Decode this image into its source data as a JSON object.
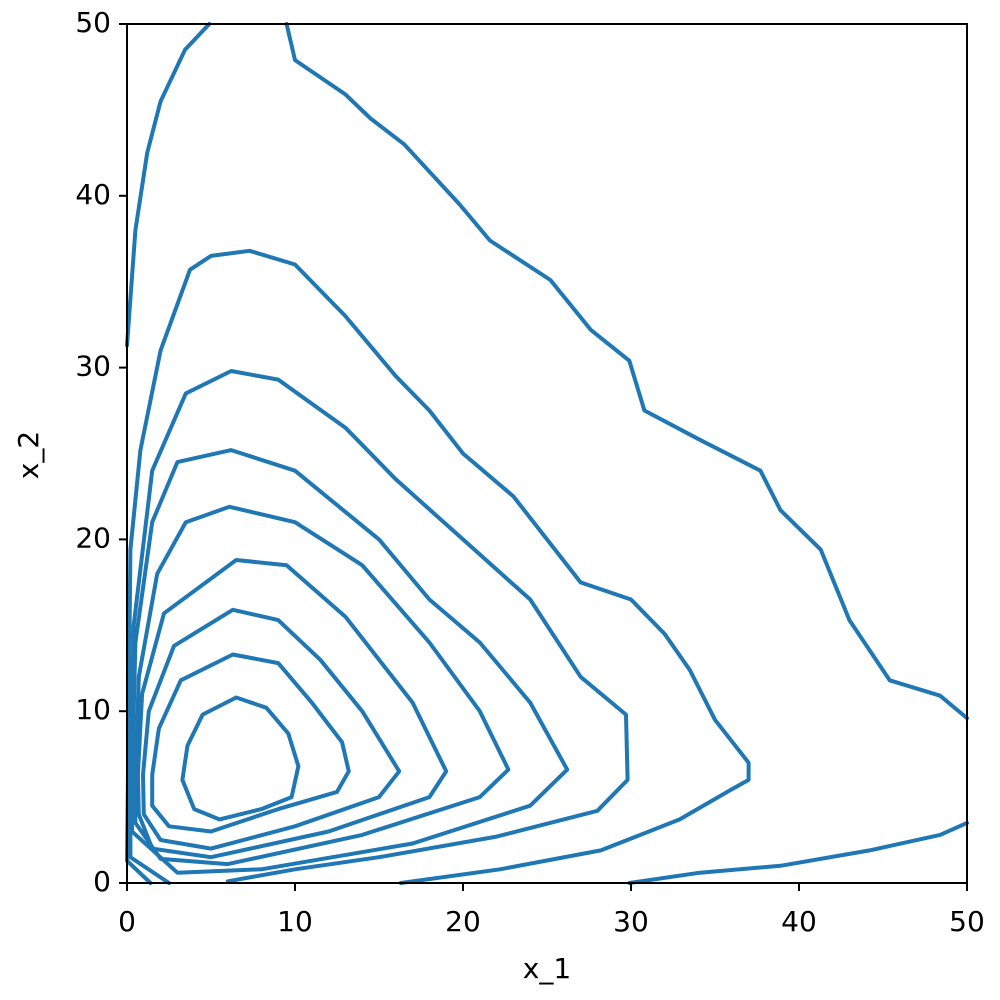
{
  "chart_data": {
    "type": "contour",
    "x_label": "x_1",
    "y_label": "x_2",
    "xlim": [
      0,
      50
    ],
    "ylim": [
      0,
      50
    ],
    "xticks": [
      0,
      10,
      20,
      30,
      40,
      50
    ],
    "yticks": [
      0,
      10,
      20,
      30,
      40,
      50
    ],
    "color": "#1f77b4",
    "series": [
      {
        "x": [
          3.3,
          3.6,
          4.5,
          6.5,
          8.3,
          9.6,
          10.2,
          9.8,
          8.0,
          5.5,
          4.0,
          3.3
        ],
        "values": [
          6.0,
          8.0,
          9.8,
          10.8,
          10.2,
          8.7,
          6.8,
          5.0,
          4.3,
          3.7,
          4.3,
          6.0
        ]
      },
      {
        "x": [
          1.5,
          1.9,
          3.2,
          6.3,
          9,
          11,
          12.8,
          13.2,
          12.5,
          9,
          5,
          2.5,
          1.5,
          1.5
        ],
        "values": [
          6.3,
          9,
          11.8,
          13.3,
          12.8,
          10.5,
          8.2,
          6.5,
          5.3,
          4.3,
          3.0,
          3.3,
          4.5,
          6.3
        ]
      },
      {
        "x": [
          0.95,
          1.3,
          2.8,
          6.3,
          9,
          11.5,
          14,
          16.2,
          15,
          10,
          5,
          2,
          1,
          0.95
        ],
        "values": [
          6.3,
          10,
          13.8,
          15.9,
          15.3,
          13,
          10,
          6.5,
          5,
          3.3,
          2,
          2.5,
          4,
          6.3
        ]
      },
      {
        "x": [
          0.65,
          0.9,
          2.2,
          6.5,
          9.5,
          13,
          17,
          19,
          18,
          12,
          5,
          1.5,
          0.7,
          0.65
        ],
        "values": [
          6.3,
          11,
          15.7,
          18.8,
          18.5,
          15.5,
          10.5,
          6.5,
          5,
          3,
          1.5,
          2,
          4,
          6.3
        ]
      },
      {
        "x": [
          0.5,
          0.7,
          1.8,
          3.5,
          6.1,
          10,
          14,
          18,
          21,
          22.7,
          21,
          14,
          6,
          2,
          0.5,
          0.5
        ],
        "values": [
          6,
          12,
          18,
          21,
          21.9,
          21,
          18.5,
          14,
          10,
          6.6,
          5,
          2.8,
          1.1,
          1.4,
          3.5,
          6
        ]
      },
      {
        "x": [
          0.3,
          0.5,
          1.5,
          3,
          6.2,
          10,
          15,
          18,
          21,
          24,
          26.2,
          24,
          17,
          8,
          3,
          0.3,
          0.3
        ],
        "values": [
          6,
          14,
          21,
          24.5,
          25.2,
          24,
          20,
          16.5,
          14,
          10.5,
          6.6,
          4.5,
          2.3,
          0.8,
          0.6,
          3,
          6
        ]
      },
      {
        "x": [
          2.5,
          0.2,
          0.2,
          0.4,
          1.5,
          3.5,
          6.2,
          9,
          13,
          16,
          20,
          24,
          27,
          29.7,
          29.8,
          28,
          22,
          15,
          10,
          6
        ],
        "values": [
          0,
          1.5,
          5,
          15,
          24,
          28.5,
          29.8,
          29.3,
          26.5,
          23.5,
          20,
          16.5,
          12,
          9.8,
          6,
          4.2,
          2.7,
          1.5,
          0.8,
          0.1
        ]
      },
      {
        "x": [
          1.4,
          0,
          0.1,
          0.2,
          0.8,
          2,
          3.75,
          5,
          7.3,
          10,
          13,
          16,
          18,
          20,
          23,
          25,
          27,
          30,
          32,
          33.5,
          35,
          37,
          37,
          35.9,
          32.9,
          28.2,
          22.2,
          16.3
        ],
        "values": [
          0,
          1.3,
          10,
          19.4,
          25.2,
          31,
          35.7,
          36.5,
          36.8,
          36,
          33,
          29.5,
          27.5,
          25,
          22.5,
          20,
          17.5,
          16.5,
          14.5,
          12.4,
          9.5,
          7.0,
          6.0,
          5.4,
          3.7,
          1.9,
          0.8,
          0
        ]
      },
      {
        "x": [
          0,
          0.5,
          1.2,
          2,
          3.45,
          4.9
        ],
        "values": [
          31.3,
          38,
          42.5,
          45.5,
          48.5,
          50
        ]
      },
      {
        "x": [
          9.5,
          10,
          13,
          14.5,
          16.5,
          19.8,
          21.6,
          25.2,
          27.6,
          29.9,
          30.8,
          34.1,
          37.7,
          38.9,
          41.3,
          43,
          45.4,
          48.4,
          50
        ],
        "values": [
          50,
          47.9,
          45.9,
          44.5,
          43,
          39.5,
          37.4,
          35.1,
          32.2,
          30.4,
          27.5,
          25.8,
          24,
          21.7,
          19.4,
          15.3,
          11.8,
          10.9,
          9.6
        ]
      },
      {
        "x": [
          29.9,
          34.1,
          38.9,
          44.2,
          48.4,
          50
        ],
        "values": [
          0,
          0.6,
          1.0,
          1.9,
          2.8,
          3.5
        ]
      }
    ]
  }
}
